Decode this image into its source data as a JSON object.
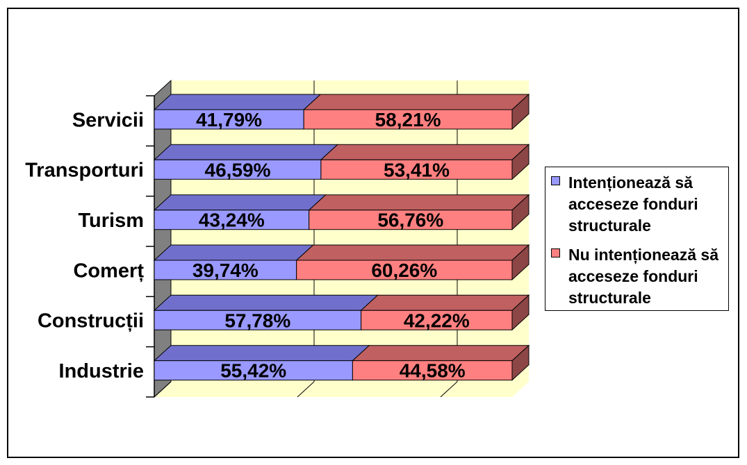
{
  "chart_data": {
    "type": "bar",
    "horizontal": true,
    "stacked": true,
    "percent_stacked": true,
    "three_d": true,
    "categories": [
      "Servicii",
      "Transporturi",
      "Turism",
      "Comerț",
      "Construcții",
      "Industrie"
    ],
    "series": [
      {
        "name": "Intenționează să acceseze fonduri structurale",
        "values": [
          41.79,
          46.59,
          43.24,
          39.74,
          57.78,
          55.42
        ],
        "labels": [
          "41,79%",
          "46,59%",
          "43,24%",
          "39,74%",
          "57,78%",
          "55,42%"
        ],
        "color": "#9999FF",
        "top_color": "#7070CC"
      },
      {
        "name": "Nu intenționează să acceseze fonduri structurale",
        "values": [
          58.21,
          53.41,
          56.76,
          60.26,
          42.22,
          44.58
        ],
        "labels": [
          "58,21%",
          "53,41%",
          "56,76%",
          "60,26%",
          "42,22%",
          "44,58%"
        ],
        "color": "#FF8080",
        "top_color": "#C06060",
        "side_color": "#8C4646"
      }
    ],
    "xlim": [
      0,
      100
    ],
    "x_gridlines": [
      0,
      40,
      80
    ],
    "value_axis_labels_visible": false,
    "grid": true,
    "legend": "right",
    "colors": {
      "back_wall": "#FFFFCC",
      "floor": "#FFFFCC",
      "side_wall": "#808080",
      "gridlines": "#000000"
    }
  }
}
